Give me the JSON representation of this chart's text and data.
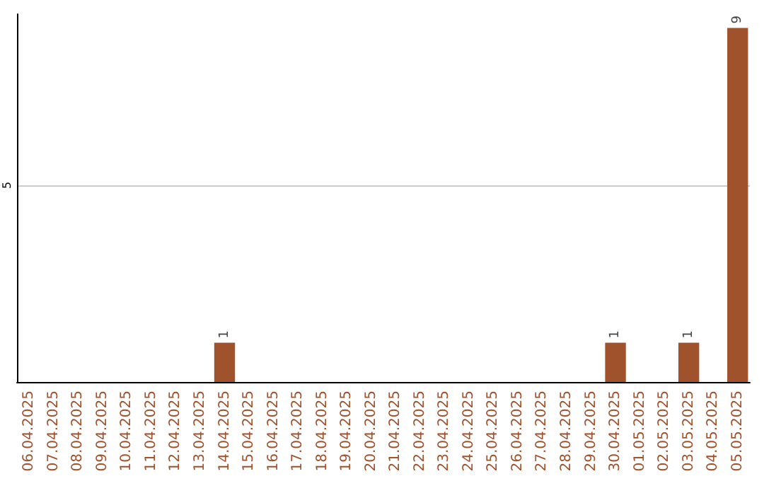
{
  "chart_data": {
    "type": "bar",
    "categories": [
      "06.04.2025",
      "07.04.2025",
      "08.04.2025",
      "09.04.2025",
      "10.04.2025",
      "11.04.2025",
      "12.04.2025",
      "13.04.2025",
      "14.04.2025",
      "15.04.2025",
      "16.04.2025",
      "17.04.2025",
      "18.04.2025",
      "19.04.2025",
      "20.04.2025",
      "21.04.2025",
      "22.04.2025",
      "23.04.2025",
      "24.04.2025",
      "25.04.2025",
      "26.04.2025",
      "27.04.2025",
      "28.04.2025",
      "29.04.2025",
      "30.04.2025",
      "01.05.2025",
      "02.05.2025",
      "03.05.2025",
      "04.05.2025",
      "05.05.2025"
    ],
    "values": [
      0,
      0,
      0,
      0,
      0,
      0,
      0,
      0,
      1,
      0,
      0,
      0,
      0,
      0,
      0,
      0,
      0,
      0,
      0,
      0,
      0,
      0,
      0,
      0,
      1,
      0,
      0,
      1,
      0,
      9
    ],
    "value_labels": [
      null,
      null,
      null,
      null,
      null,
      null,
      null,
      null,
      "1",
      null,
      null,
      null,
      null,
      null,
      null,
      null,
      null,
      null,
      null,
      null,
      null,
      null,
      null,
      null,
      "1",
      null,
      null,
      "1",
      null,
      "9"
    ],
    "color": "#a0522d",
    "ylim": [
      0,
      9.35
    ],
    "yticks": [
      5
    ],
    "grid": "y"
  }
}
